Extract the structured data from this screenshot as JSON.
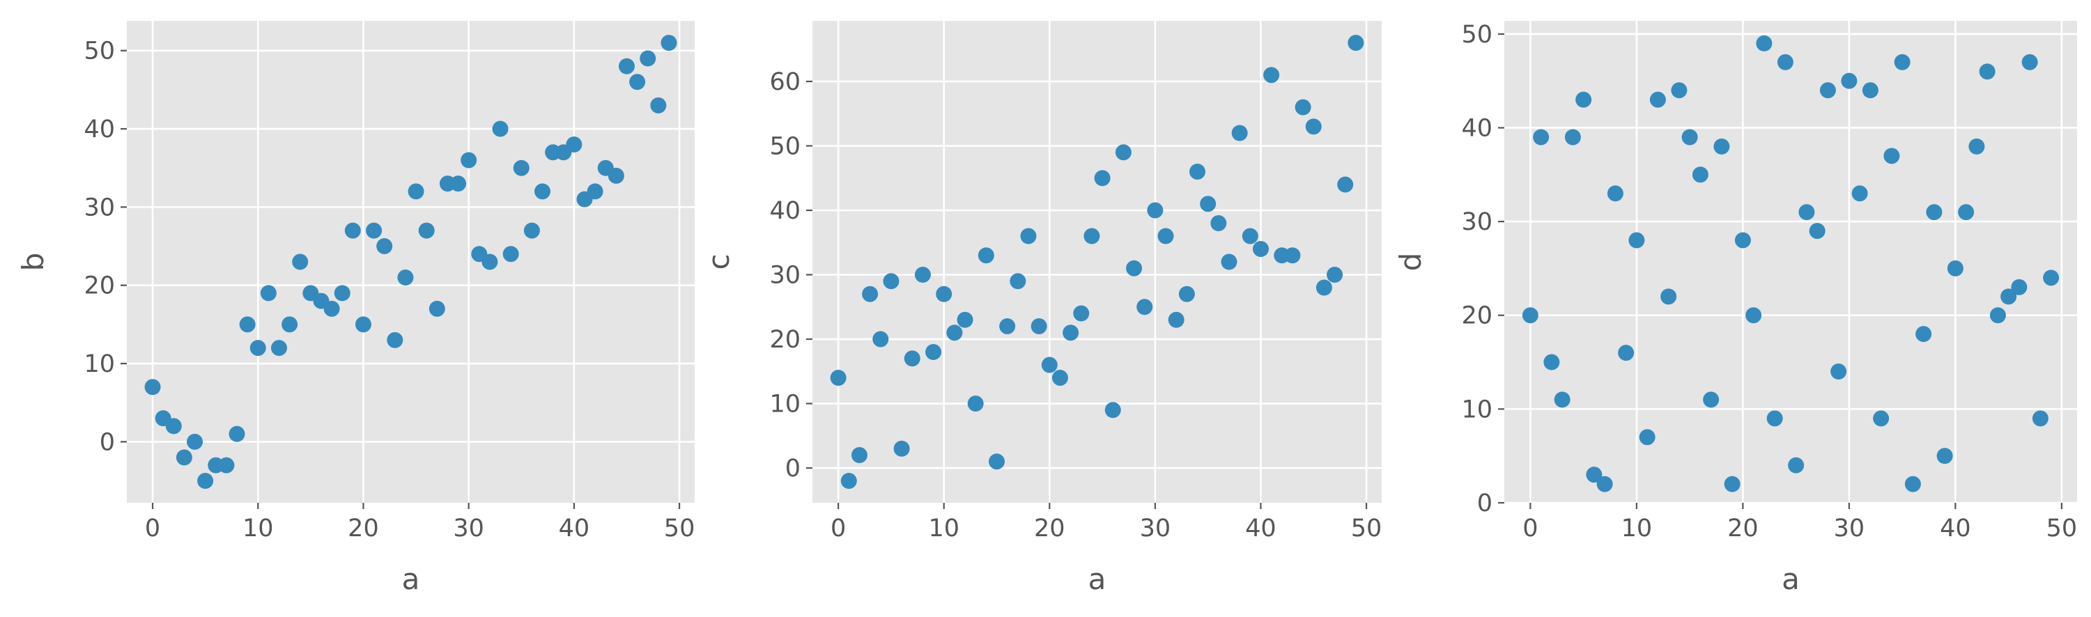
{
  "chart_data": [
    {
      "type": "scatter",
      "xlabel": "a",
      "ylabel": "b",
      "xlim": [
        -2.45,
        51.45
      ],
      "ylim": [
        -7.8,
        53.8
      ],
      "xticks": [
        0,
        10,
        20,
        30,
        40,
        50
      ],
      "yticks": [
        0,
        10,
        20,
        30,
        40,
        50
      ],
      "grid": true,
      "color": "#348abd",
      "series": [
        {
          "x": [
            0,
            1,
            2,
            3,
            4,
            5,
            6,
            7,
            8,
            9,
            10,
            11,
            12,
            13,
            14,
            15,
            16,
            17,
            18,
            19,
            20,
            21,
            22,
            23,
            24,
            25,
            26,
            27,
            28,
            29,
            30,
            31,
            32,
            33,
            34,
            35,
            36,
            37,
            38,
            39,
            40,
            41,
            42,
            43,
            44,
            45,
            46,
            47,
            48,
            49
          ],
          "y": [
            7,
            3,
            2,
            -2,
            0,
            -5,
            -3,
            -3,
            1,
            15,
            12,
            19,
            12,
            15,
            23,
            19,
            18,
            17,
            19,
            27,
            15,
            27,
            25,
            13,
            21,
            32,
            27,
            17,
            33,
            33,
            36,
            24,
            23,
            40,
            24,
            35,
            27,
            32,
            37,
            37,
            38,
            31,
            32,
            35,
            34,
            48,
            46,
            49,
            43,
            51
          ]
        }
      ]
    },
    {
      "type": "scatter",
      "xlabel": "a",
      "ylabel": "c",
      "xlim": [
        -2.45,
        51.45
      ],
      "ylim": [
        -5.4,
        69.4
      ],
      "xticks": [
        0,
        10,
        20,
        30,
        40,
        50
      ],
      "yticks": [
        0,
        10,
        20,
        30,
        40,
        50,
        60
      ],
      "grid": true,
      "color": "#348abd",
      "series": [
        {
          "x": [
            0,
            1,
            2,
            3,
            4,
            5,
            6,
            7,
            8,
            9,
            10,
            11,
            12,
            13,
            14,
            15,
            16,
            17,
            18,
            19,
            20,
            21,
            22,
            23,
            24,
            25,
            26,
            27,
            28,
            29,
            30,
            31,
            32,
            33,
            34,
            35,
            36,
            37,
            38,
            39,
            40,
            41,
            42,
            43,
            44,
            45,
            46,
            47,
            48,
            49
          ],
          "y": [
            14,
            -2,
            2,
            27,
            20,
            29,
            3,
            17,
            30,
            18,
            27,
            21,
            23,
            10,
            33,
            1,
            22,
            29,
            36,
            22,
            16,
            14,
            21,
            24,
            36,
            45,
            9,
            49,
            31,
            25,
            40,
            36,
            23,
            27,
            46,
            41,
            38,
            32,
            52,
            36,
            34,
            61,
            33,
            33,
            56,
            53,
            28,
            30,
            44,
            66
          ]
        }
      ]
    },
    {
      "type": "scatter",
      "xlabel": "a",
      "ylabel": "d",
      "xlim": [
        -2.45,
        51.45
      ],
      "ylim": [
        0,
        51.4
      ],
      "xticks": [
        0,
        10,
        20,
        30,
        40,
        50
      ],
      "yticks": [
        0,
        10,
        20,
        30,
        40,
        50
      ],
      "grid": true,
      "color": "#348abd",
      "series": [
        {
          "x": [
            0,
            1,
            2,
            3,
            4,
            5,
            6,
            7,
            8,
            9,
            10,
            11,
            12,
            13,
            14,
            15,
            16,
            17,
            18,
            19,
            20,
            21,
            22,
            23,
            24,
            25,
            26,
            27,
            28,
            29,
            30,
            31,
            32,
            33,
            34,
            35,
            36,
            37,
            38,
            39,
            40,
            41,
            42,
            43,
            44,
            45,
            46,
            47,
            48,
            49
          ],
          "y": [
            20,
            39,
            15,
            11,
            39,
            43,
            3,
            2,
            33,
            16,
            28,
            7,
            43,
            22,
            44,
            39,
            35,
            11,
            38,
            2,
            28,
            20,
            49,
            9,
            47,
            4,
            31,
            29,
            44,
            14,
            45,
            33,
            44,
            9,
            37,
            47,
            2,
            18,
            31,
            5,
            25,
            31,
            38,
            46,
            20,
            22,
            23,
            47,
            9,
            24
          ]
        }
      ]
    }
  ]
}
